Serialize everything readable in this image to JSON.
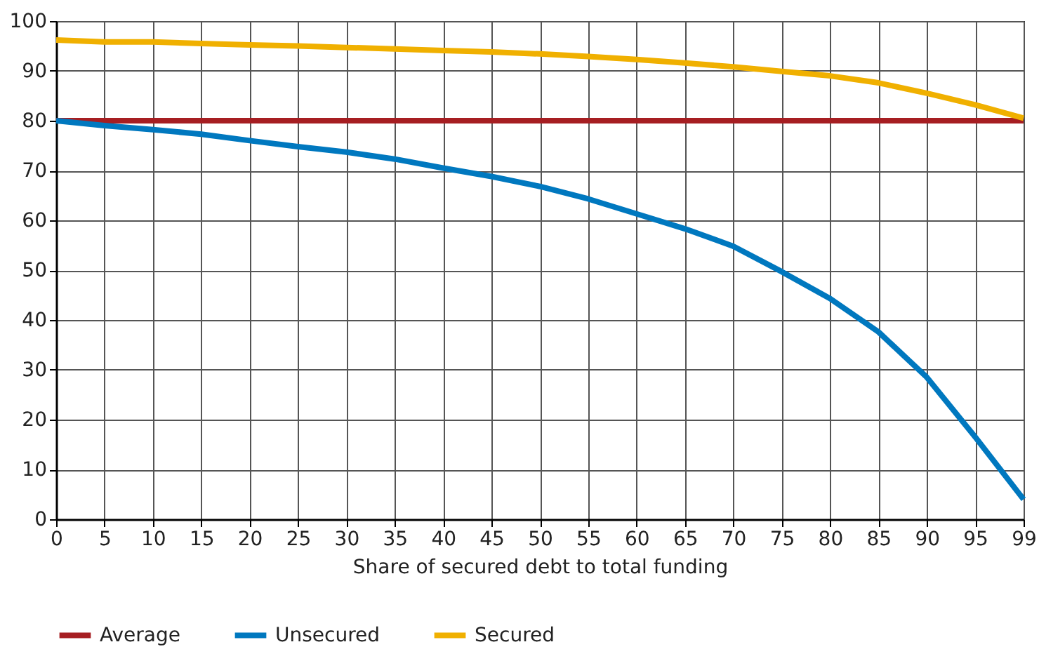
{
  "chart_data": {
    "type": "line",
    "xlabel": "Share of secured debt to total funding",
    "categories": [
      "0",
      "5",
      "10",
      "15",
      "20",
      "25",
      "30",
      "35",
      "40",
      "45",
      "50",
      "55",
      "60",
      "65",
      "70",
      "75",
      "80",
      "85",
      "90",
      "95",
      "99"
    ],
    "series": [
      {
        "name": "Average",
        "color": "#a61e22",
        "values": [
          80,
          80,
          80,
          80,
          80,
          80,
          80,
          80,
          80,
          80,
          80,
          80,
          80,
          80,
          80,
          80,
          80,
          80,
          80,
          80,
          80
        ]
      },
      {
        "name": "Unsecured",
        "color": "#0078bf",
        "values": [
          80,
          79,
          78.2,
          77.3,
          76,
          74.8,
          73.7,
          72.3,
          70.5,
          68.8,
          66.8,
          64.3,
          61.3,
          58.3,
          54.8,
          49.7,
          44.3,
          37.6,
          28.5,
          16.5,
          4
        ]
      },
      {
        "name": "Secured",
        "color": "#f0b000",
        "values": [
          96.2,
          95.8,
          95.8,
          95.5,
          95.2,
          95,
          94.7,
          94.4,
          94.1,
          93.8,
          93.4,
          92.9,
          92.3,
          91.6,
          90.8,
          89.9,
          89,
          87.6,
          85.5,
          83.2,
          80.5
        ]
      }
    ],
    "ylim": [
      0,
      100
    ],
    "yticks": [
      0,
      10,
      20,
      30,
      40,
      50,
      60,
      70,
      80,
      90,
      100
    ],
    "grid": true,
    "legend": "bottom",
    "marker": "none",
    "line_style": "solid"
  }
}
